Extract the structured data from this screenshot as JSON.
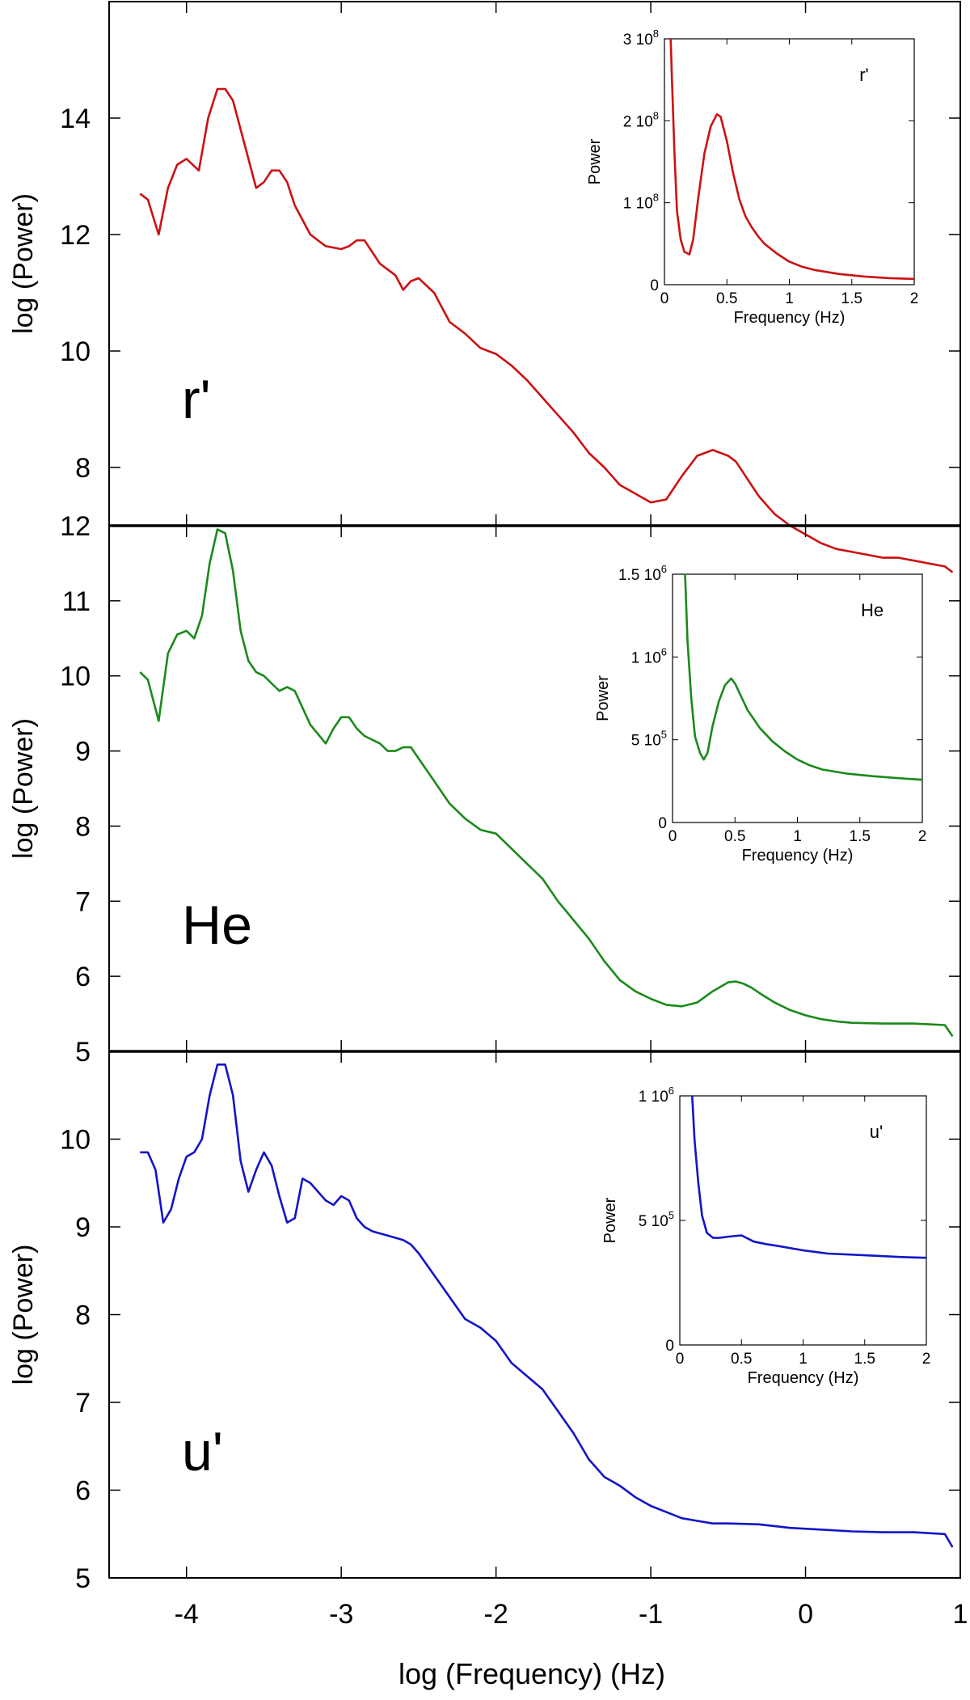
{
  "figure": {
    "x_axis_label": "log (Frequency) (Hz)"
  },
  "chart_data": [
    {
      "type": "line",
      "panel_label": "r'",
      "color": "#cc1111",
      "ylabel": "log (Power)",
      "xlim": [
        -4.5,
        1
      ],
      "ylim": [
        7,
        16
      ],
      "yticks": [
        8,
        10,
        12,
        14
      ],
      "x": [
        -4.3,
        -4.25,
        -4.18,
        -4.12,
        -4.06,
        -4.0,
        -3.92,
        -3.86,
        -3.8,
        -3.75,
        -3.7,
        -3.62,
        -3.55,
        -3.5,
        -3.45,
        -3.4,
        -3.35,
        -3.3,
        -3.2,
        -3.1,
        -3.0,
        -2.95,
        -2.9,
        -2.85,
        -2.75,
        -2.7,
        -2.65,
        -2.6,
        -2.55,
        -2.5,
        -2.4,
        -2.3,
        -2.2,
        -2.1,
        -2.0,
        -1.9,
        -1.8,
        -1.7,
        -1.6,
        -1.5,
        -1.4,
        -1.3,
        -1.2,
        -1.1,
        -1.0,
        -0.9,
        -0.8,
        -0.7,
        -0.6,
        -0.5,
        -0.45,
        -0.4,
        -0.35,
        -0.3,
        -0.25,
        -0.2,
        -0.1,
        0.0,
        0.1,
        0.2,
        0.3,
        0.4,
        0.5,
        0.6,
        0.7,
        0.8,
        0.9,
        0.95
      ],
      "y": [
        12.7,
        12.6,
        12.0,
        12.8,
        13.2,
        13.3,
        13.1,
        14.0,
        14.5,
        14.5,
        14.3,
        13.5,
        12.8,
        12.9,
        13.1,
        13.1,
        12.9,
        12.5,
        12.0,
        11.8,
        11.75,
        11.8,
        11.9,
        11.9,
        11.5,
        11.4,
        11.3,
        11.05,
        11.2,
        11.25,
        11.0,
        10.5,
        10.3,
        10.05,
        9.95,
        9.75,
        9.5,
        9.2,
        8.9,
        8.6,
        8.25,
        8.0,
        7.7,
        7.55,
        7.4,
        7.45,
        7.85,
        8.2,
        8.3,
        8.2,
        8.1,
        7.9,
        7.7,
        7.5,
        7.35,
        7.2,
        7.0,
        6.85,
        6.7,
        6.6,
        6.55,
        6.5,
        6.45,
        6.45,
        6.4,
        6.35,
        6.3,
        6.2
      ],
      "inset": {
        "name": "r'",
        "xlabel": "Frequency (Hz)",
        "ylabel": "Power",
        "xlim": [
          0,
          2
        ],
        "ylim": [
          0,
          300000000
        ],
        "xtick_labels": [
          "0",
          "0.5",
          "1",
          "1.5",
          "2"
        ],
        "ytick_labels": [
          [
            "0",
            ""
          ],
          [
            "1 10",
            "8"
          ],
          [
            "2 10",
            "8"
          ],
          [
            "3 10",
            "8"
          ]
        ],
        "x": [
          0.05,
          0.06,
          0.08,
          0.1,
          0.13,
          0.16,
          0.2,
          0.23,
          0.27,
          0.32,
          0.37,
          0.42,
          0.45,
          0.5,
          0.55,
          0.6,
          0.65,
          0.7,
          0.75,
          0.8,
          0.9,
          1.0,
          1.1,
          1.2,
          1.4,
          1.6,
          1.8,
          2.0
        ],
        "y": [
          300000000,
          250000000,
          160000000,
          90000000,
          55000000,
          40000000,
          37000000,
          55000000,
          105000000,
          160000000,
          193000000,
          208000000,
          205000000,
          175000000,
          136000000,
          104000000,
          83000000,
          70000000,
          59000000,
          50000000,
          38000000,
          28000000,
          22000000,
          18000000,
          13000000,
          10000000,
          8000000,
          7000000
        ]
      }
    },
    {
      "type": "line",
      "panel_label": "He",
      "color": "#1a8a1a",
      "ylabel": "log (Power)",
      "xlim": [
        -4.5,
        1
      ],
      "ylim": [
        5,
        12
      ],
      "yticks": [
        5,
        6,
        7,
        8,
        9,
        10,
        11,
        12
      ],
      "x": [
        -4.3,
        -4.25,
        -4.18,
        -4.12,
        -4.06,
        -4.0,
        -3.95,
        -3.9,
        -3.85,
        -3.8,
        -3.75,
        -3.7,
        -3.65,
        -3.6,
        -3.55,
        -3.5,
        -3.45,
        -3.4,
        -3.35,
        -3.3,
        -3.2,
        -3.1,
        -3.05,
        -3.0,
        -2.95,
        -2.9,
        -2.85,
        -2.75,
        -2.7,
        -2.65,
        -2.6,
        -2.55,
        -2.5,
        -2.4,
        -2.3,
        -2.2,
        -2.1,
        -2.0,
        -1.9,
        -1.8,
        -1.7,
        -1.6,
        -1.5,
        -1.4,
        -1.3,
        -1.2,
        -1.1,
        -1.0,
        -0.9,
        -0.8,
        -0.7,
        -0.6,
        -0.5,
        -0.45,
        -0.4,
        -0.35,
        -0.3,
        -0.2,
        -0.1,
        0.0,
        0.1,
        0.2,
        0.3,
        0.5,
        0.7,
        0.9,
        0.95
      ],
      "y": [
        10.05,
        9.95,
        9.4,
        10.3,
        10.55,
        10.6,
        10.5,
        10.8,
        11.5,
        11.95,
        11.9,
        11.4,
        10.6,
        10.2,
        10.05,
        10.0,
        9.9,
        9.8,
        9.85,
        9.8,
        9.35,
        9.1,
        9.3,
        9.45,
        9.45,
        9.3,
        9.2,
        9.1,
        9.0,
        9.0,
        9.05,
        9.05,
        8.9,
        8.6,
        8.3,
        8.1,
        7.95,
        7.9,
        7.7,
        7.5,
        7.3,
        7.0,
        6.75,
        6.5,
        6.2,
        5.95,
        5.8,
        5.7,
        5.62,
        5.6,
        5.65,
        5.8,
        5.92,
        5.93,
        5.9,
        5.85,
        5.78,
        5.65,
        5.55,
        5.48,
        5.43,
        5.4,
        5.38,
        5.37,
        5.37,
        5.35,
        5.2
      ],
      "inset": {
        "name": "He",
        "xlabel": "Frequency (Hz)",
        "ylabel": "Power",
        "xlim": [
          0,
          2
        ],
        "ylim": [
          0,
          1500000
        ],
        "xtick_labels": [
          "0",
          "0.5",
          "1",
          "1.5",
          "2"
        ],
        "ytick_labels": [
          [
            "0",
            ""
          ],
          [
            "5 10",
            "5"
          ],
          [
            "1 10",
            "6"
          ],
          [
            "1.5 10",
            "6"
          ]
        ],
        "x": [
          0.1,
          0.12,
          0.15,
          0.18,
          0.22,
          0.25,
          0.28,
          0.32,
          0.37,
          0.42,
          0.47,
          0.5,
          0.55,
          0.6,
          0.7,
          0.8,
          0.9,
          1.0,
          1.1,
          1.2,
          1.4,
          1.6,
          1.8,
          2.0
        ],
        "y": [
          1500000,
          1100000,
          750000,
          520000,
          420000,
          380000,
          420000,
          580000,
          730000,
          830000,
          870000,
          840000,
          760000,
          680000,
          570000,
          490000,
          430000,
          380000,
          345000,
          320000,
          295000,
          280000,
          268000,
          258000
        ]
      }
    },
    {
      "type": "line",
      "panel_label": "u'",
      "color": "#1414c8",
      "ylabel": "log (Power)",
      "xlim": [
        -4.5,
        1
      ],
      "ylim": [
        5,
        11
      ],
      "yticks": [
        5,
        6,
        7,
        8,
        9,
        10
      ],
      "x": [
        -4.3,
        -4.25,
        -4.2,
        -4.15,
        -4.1,
        -4.05,
        -4.0,
        -3.95,
        -3.9,
        -3.85,
        -3.8,
        -3.75,
        -3.7,
        -3.65,
        -3.6,
        -3.55,
        -3.5,
        -3.45,
        -3.4,
        -3.35,
        -3.3,
        -3.25,
        -3.2,
        -3.15,
        -3.1,
        -3.05,
        -3.0,
        -2.95,
        -2.9,
        -2.85,
        -2.8,
        -2.7,
        -2.6,
        -2.55,
        -2.5,
        -2.4,
        -2.3,
        -2.2,
        -2.1,
        -2.0,
        -1.9,
        -1.8,
        -1.7,
        -1.6,
        -1.5,
        -1.4,
        -1.3,
        -1.2,
        -1.1,
        -1.0,
        -0.9,
        -0.8,
        -0.7,
        -0.6,
        -0.5,
        -0.3,
        -0.1,
        0.1,
        0.3,
        0.5,
        0.7,
        0.9,
        0.95
      ],
      "y": [
        9.85,
        9.85,
        9.65,
        9.05,
        9.2,
        9.55,
        9.8,
        9.85,
        10.0,
        10.5,
        10.85,
        10.85,
        10.5,
        9.75,
        9.4,
        9.65,
        9.85,
        9.7,
        9.35,
        9.05,
        9.1,
        9.55,
        9.5,
        9.4,
        9.3,
        9.25,
        9.35,
        9.3,
        9.1,
        9.0,
        8.95,
        8.9,
        8.85,
        8.8,
        8.7,
        8.45,
        8.2,
        7.95,
        7.85,
        7.7,
        7.45,
        7.3,
        7.15,
        6.9,
        6.65,
        6.35,
        6.15,
        6.05,
        5.92,
        5.82,
        5.75,
        5.68,
        5.65,
        5.62,
        5.62,
        5.61,
        5.57,
        5.55,
        5.53,
        5.52,
        5.52,
        5.5,
        5.35
      ],
      "inset": {
        "name": "u'",
        "xlabel": "Frequency (Hz)",
        "ylabel": "Power",
        "xlim": [
          0,
          2
        ],
        "ylim": [
          0,
          1000000
        ],
        "xtick_labels": [
          "0",
          "0.5",
          "1",
          "1.5",
          "2"
        ],
        "ytick_labels": [
          [
            "0",
            ""
          ],
          [
            "5 10",
            "5"
          ],
          [
            "1 10",
            "6"
          ]
        ],
        "x": [
          0.1,
          0.12,
          0.15,
          0.18,
          0.22,
          0.27,
          0.32,
          0.4,
          0.5,
          0.6,
          0.7,
          0.8,
          1.0,
          1.2,
          1.5,
          1.8,
          2.0
        ],
        "y": [
          1000000,
          820000,
          650000,
          520000,
          450000,
          430000,
          430000,
          435000,
          440000,
          415000,
          405000,
          397000,
          380000,
          367000,
          360000,
          353000,
          350000
        ]
      }
    }
  ]
}
